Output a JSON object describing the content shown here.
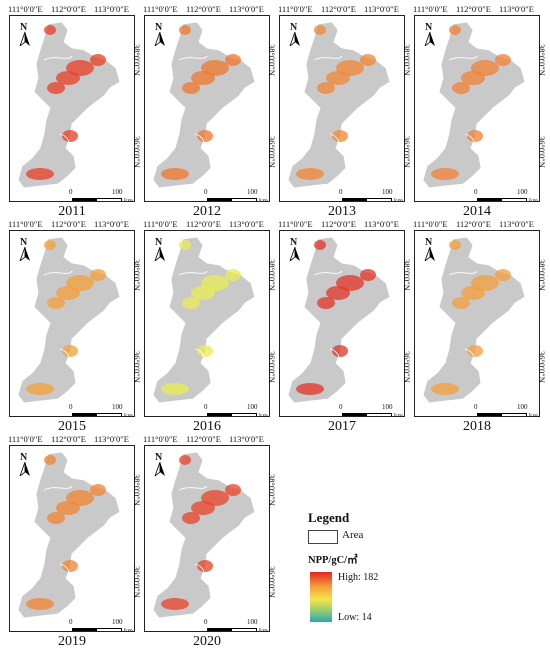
{
  "axis_labels": {
    "lon": [
      "111°0′0″E",
      "112°0′0″E",
      "113°0′0″E"
    ],
    "lat": [
      "38°0′0″N",
      "36°0′0″N"
    ]
  },
  "north_label": "N",
  "scale": {
    "zero": "0",
    "hundred": "100",
    "unit": "km"
  },
  "panels": [
    {
      "year": "2011",
      "tone": "#e5442c"
    },
    {
      "year": "2012",
      "tone": "#f07a34"
    },
    {
      "year": "2013",
      "tone": "#f08a3a"
    },
    {
      "year": "2014",
      "tone": "#f0843a"
    },
    {
      "year": "2015",
      "tone": "#f4a23e"
    },
    {
      "year": "2016",
      "tone": "#e8ea5a"
    },
    {
      "year": "2017",
      "tone": "#e23a2e"
    },
    {
      "year": "2018",
      "tone": "#f2a040"
    },
    {
      "year": "2019",
      "tone": "#f08838"
    },
    {
      "year": "2020",
      "tone": "#e8482e"
    }
  ],
  "legend": {
    "title": "Legend",
    "area_label": "Area",
    "npp_label": "NPP/gC/㎡",
    "high_label": "High: 182",
    "low_label": "Low: 14",
    "colors": [
      "#e2261f",
      "#f6a23a",
      "#f4e44c",
      "#9fd06a",
      "#2aa6b8"
    ]
  },
  "region_color": "#c9c9c9"
}
